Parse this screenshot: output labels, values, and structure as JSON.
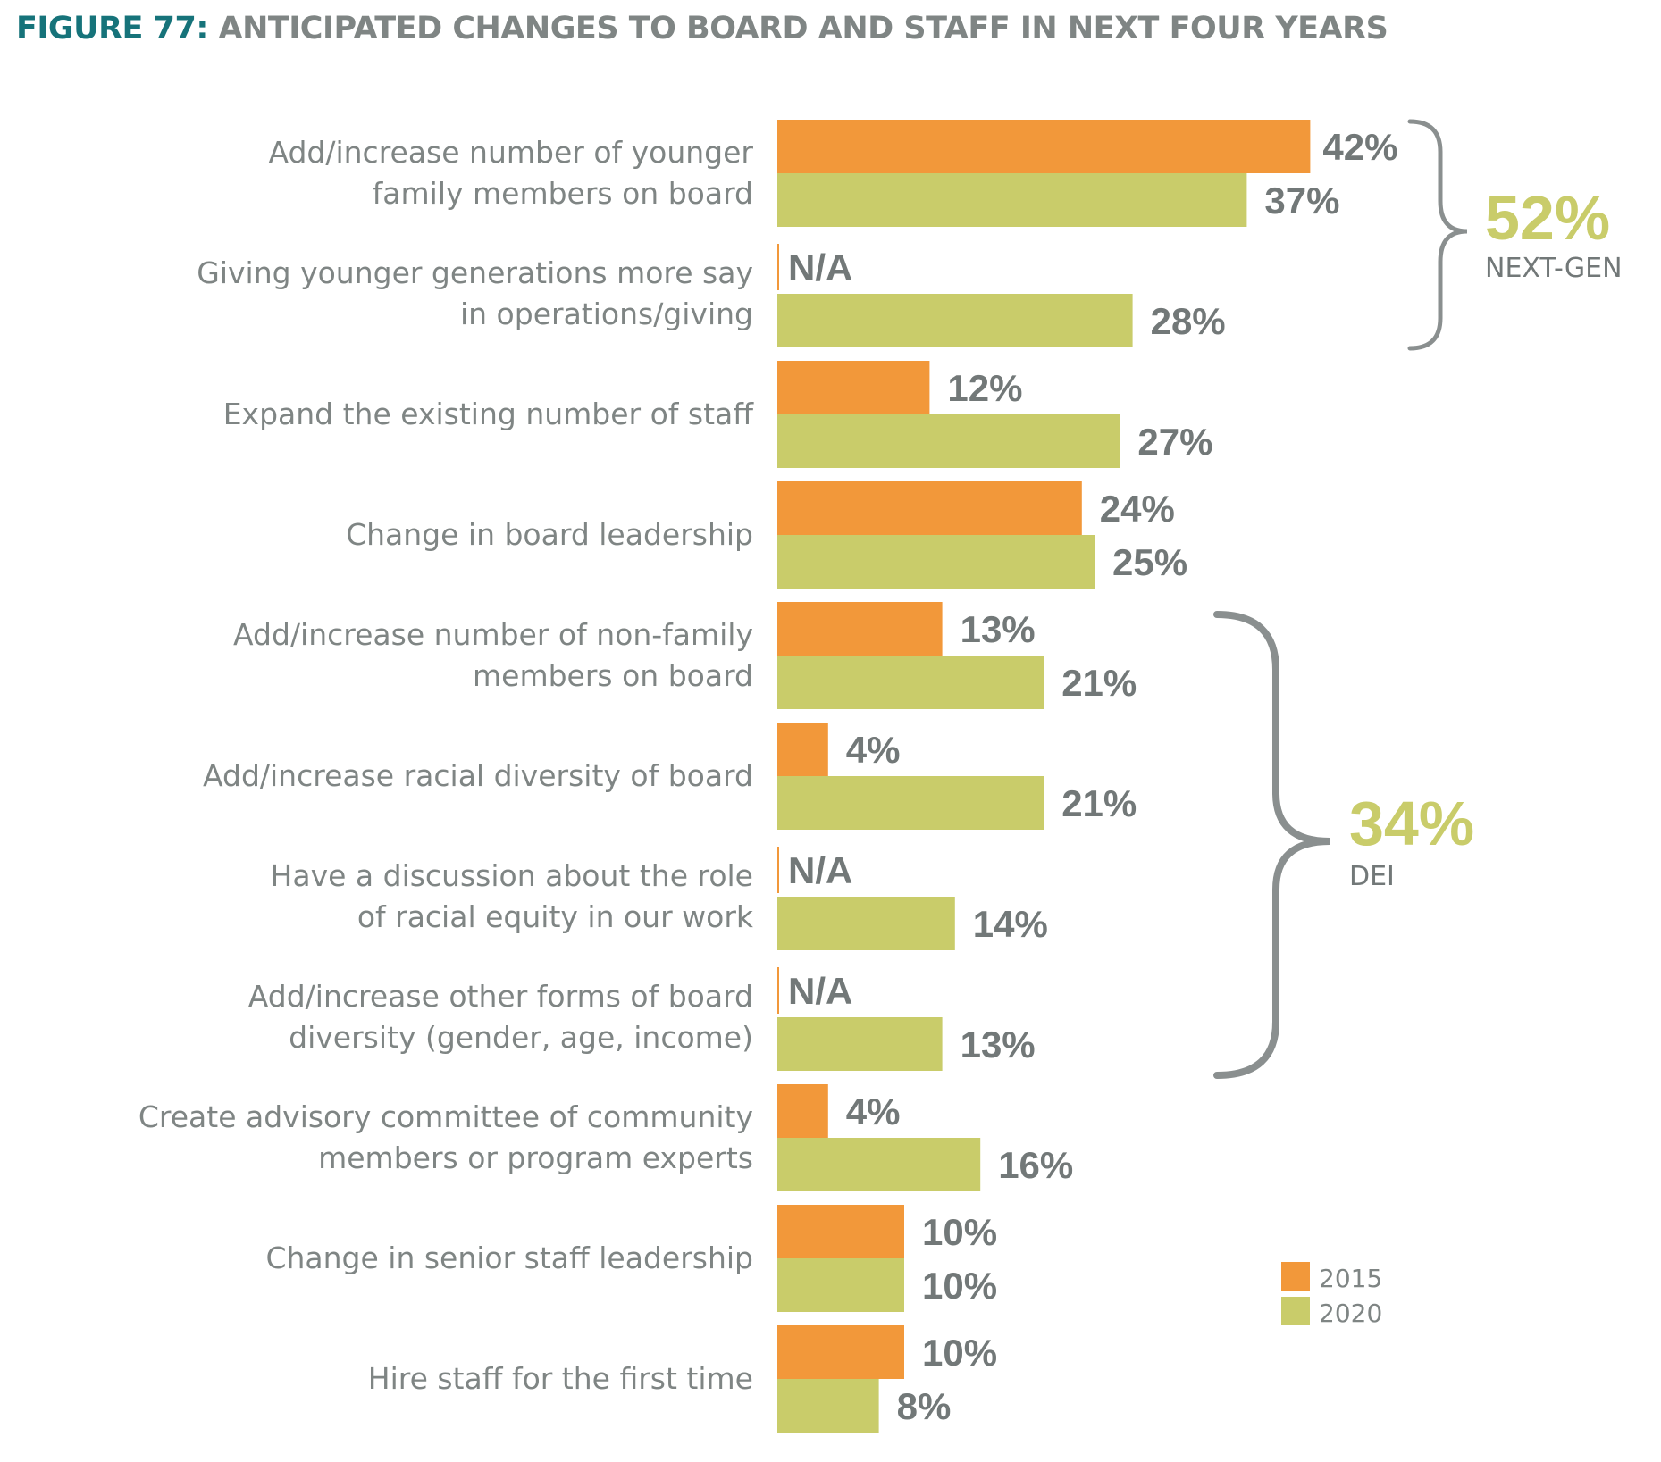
{
  "title": {
    "figure_number": "FIGURE 77:",
    "text": "ANTICIPATED CHANGES TO BOARD AND STAFF IN NEXT FOUR YEARS"
  },
  "colors": {
    "s2015": "#f2983a",
    "s2020": "#c9cc6a",
    "title_accent": "#16737a",
    "text_gray": "#7f8584",
    "bracket": "#8a8f8f",
    "group_pct": "#c9cc6a"
  },
  "groups": [
    {
      "percent": "52%",
      "name": "NEXT-GEN"
    },
    {
      "percent": "34%",
      "name": "DEI"
    }
  ],
  "chart_data": {
    "type": "bar",
    "orientation": "horizontal",
    "categories": [
      [
        "Add/increase number of younger",
        "family members on board"
      ],
      [
        "Giving younger generations more say",
        "in operations/giving"
      ],
      [
        "Expand the existing number of staff"
      ],
      [
        "Change in board leadership"
      ],
      [
        "Add/increase number of non-family",
        "members on board"
      ],
      [
        "Add/increase racial diversity of board"
      ],
      [
        "Have a discussion about the role",
        "of racial equity in our work"
      ],
      [
        "Add/increase other forms of board",
        "diversity (gender, age, income)"
      ],
      [
        "Create advisory committee of community",
        "members or program experts"
      ],
      [
        "Change in senior staff leadership"
      ],
      [
        "Hire staff for the first time"
      ]
    ],
    "series": [
      {
        "name": "2015",
        "values": [
          42,
          null,
          12,
          24,
          13,
          4,
          null,
          null,
          4,
          10,
          10
        ],
        "labels": [
          "42%",
          "N/A",
          "12%",
          "24%",
          "13%",
          "4%",
          "N/A",
          "N/A",
          "4%",
          "10%",
          "10%"
        ]
      },
      {
        "name": "2020",
        "values": [
          37,
          28,
          27,
          25,
          21,
          21,
          14,
          13,
          16,
          10,
          8
        ],
        "labels": [
          "37%",
          "28%",
          "27%",
          "25%",
          "21%",
          "21%",
          "14%",
          "13%",
          "16%",
          "10%",
          "8%"
        ]
      }
    ],
    "xlim": [
      0,
      42
    ],
    "grid": false,
    "legend": "bottom-right",
    "annotations": [
      {
        "group": "NEXT-GEN",
        "percent": "52%",
        "categories": [
          0,
          1
        ]
      },
      {
        "group": "DEI",
        "percent": "34%",
        "categories": [
          4,
          5,
          6,
          7
        ]
      }
    ]
  }
}
